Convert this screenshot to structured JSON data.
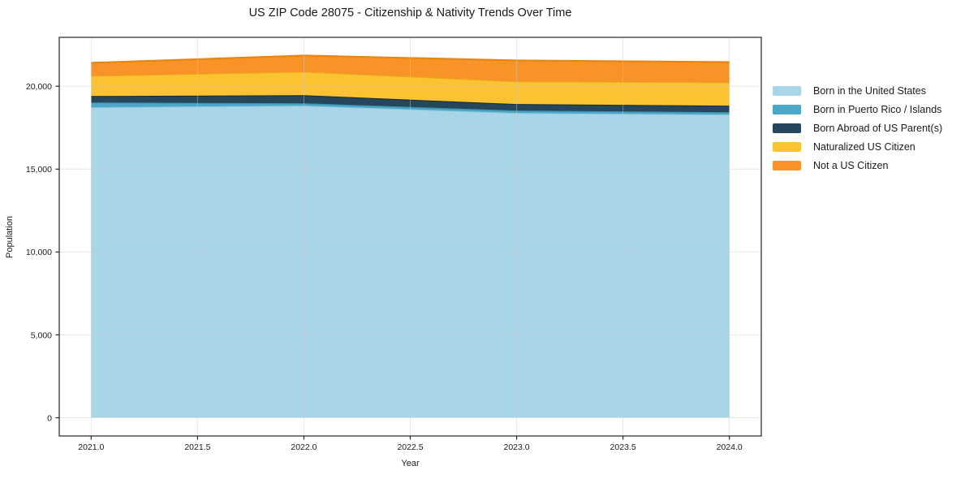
{
  "chart_data": {
    "type": "area",
    "stacked": true,
    "title": "US ZIP Code 28075 - Citizenship & Nativity Trends Over Time",
    "xlabel": "Year",
    "ylabel": "Population",
    "x": [
      2021,
      2022,
      2023,
      2024
    ],
    "series": [
      {
        "name": "Born in the United States",
        "values": [
          18730,
          18830,
          18390,
          18290
        ],
        "fill": "#A8D5E8",
        "edge": "#8FC6DE"
      },
      {
        "name": "Born in Puerto Rico / Islands",
        "values": [
          290,
          145,
          145,
          145
        ],
        "fill": "#4AA7C7",
        "edge": "#3A8FA9"
      },
      {
        "name": "Born Abroad of US Parent(s)",
        "values": [
          390,
          485,
          390,
          390
        ],
        "fill": "#25465B",
        "edge": "#152B38"
      },
      {
        "name": "Naturalized US Citizen",
        "values": [
          1220,
          1420,
          1365,
          1415
        ],
        "fill": "#FBC231",
        "edge": "#EAA81C"
      },
      {
        "name": "Not a US Citizen",
        "values": [
          785,
          975,
          1270,
          1220
        ],
        "fill": "#F79327",
        "edge": "#E8830F"
      }
    ],
    "xticks": [
      2021.0,
      2021.5,
      2022.0,
      2022.5,
      2023.0,
      2023.5,
      2024.0
    ],
    "xtick_labels": [
      "2021.0",
      "2021.5",
      "2022.0",
      "2022.5",
      "2023.0",
      "2023.5",
      "2024.0"
    ],
    "yticks": [
      0,
      5000,
      10000,
      15000,
      20000
    ],
    "ytick_labels": [
      "0",
      "5,000",
      "10,000",
      "15,000",
      "20,000"
    ],
    "xlim": [
      2020.85,
      2024.15
    ],
    "ylim": [
      -1100,
      22950
    ],
    "grid": true,
    "legend_position": "right",
    "colors": {
      "background": "#ffffff",
      "spine": "#262626",
      "grid": "#cccccc",
      "text": "#1a1a1a"
    }
  }
}
